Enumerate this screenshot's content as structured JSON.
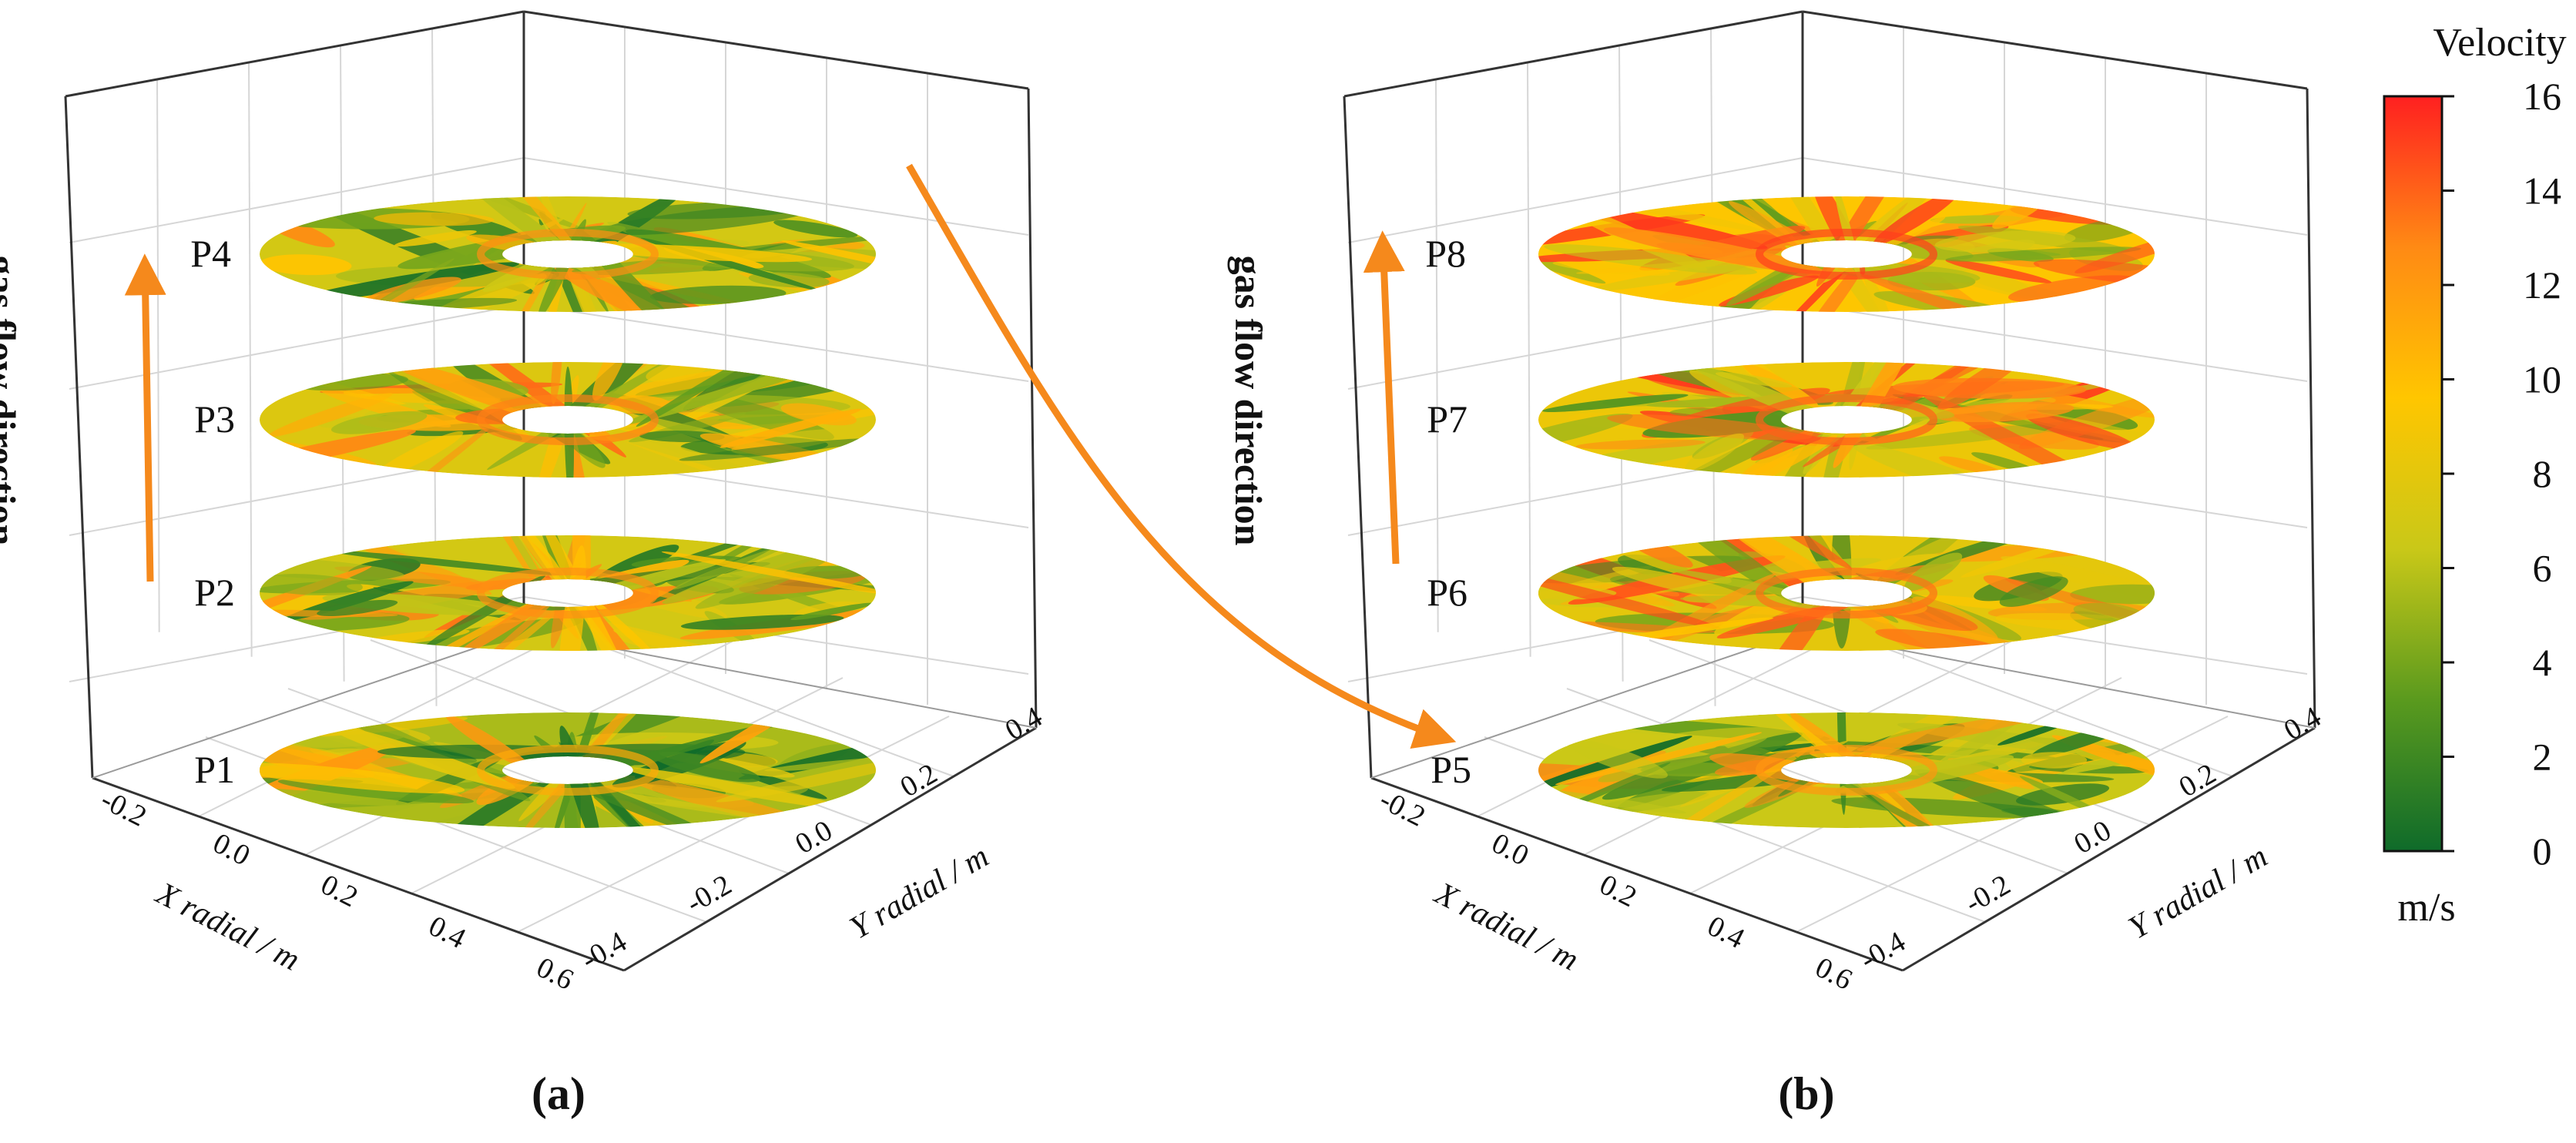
{
  "figure": {
    "panel_a_label": "(a)",
    "panel_b_label": "(b)",
    "flow_direction_label": "gas flow direction"
  },
  "colorbar": {
    "title": "Velocity",
    "unit": "m/s",
    "min": 0,
    "max": 16,
    "ticks": [
      "0",
      "2",
      "4",
      "6",
      "8",
      "10",
      "12",
      "14",
      "16"
    ],
    "stops": [
      "#0f6b2a",
      "#5a9a1e",
      "#c9c818",
      "#ffc600",
      "#ff8a14",
      "#ff2020"
    ]
  },
  "accent_color": "#f5891c",
  "chart_data": [
    {
      "type": "heatmap",
      "title": "(a)",
      "zlabel": "gas flow direction",
      "xlabel": "X radial / m",
      "ylabel": "Y radial / m",
      "xticks": [
        "-0.2",
        "0.0",
        "0.2",
        "0.4",
        "0.6"
      ],
      "yticks": [
        "-0.4",
        "-0.2",
        "0.0",
        "0.2",
        "0.4"
      ],
      "planes": [
        {
          "name": "P1",
          "mean_velocity": 5.5
        },
        {
          "name": "P2",
          "mean_velocity": 7.0
        },
        {
          "name": "P3",
          "mean_velocity": 7.5
        },
        {
          "name": "P4",
          "mean_velocity": 7.0
        }
      ]
    },
    {
      "type": "heatmap",
      "title": "(b)",
      "zlabel": "gas flow direction",
      "xlabel": "X radial / m",
      "ylabel": "Y radial / m",
      "xticks": [
        "-0.2",
        "0.0",
        "0.2",
        "0.4",
        "0.6"
      ],
      "yticks": [
        "-0.4",
        "-0.2",
        "0.0",
        "0.2",
        "0.4"
      ],
      "planes": [
        {
          "name": "P5",
          "mean_velocity": 6.5
        },
        {
          "name": "P6",
          "mean_velocity": 8.0
        },
        {
          "name": "P7",
          "mean_velocity": 8.5
        },
        {
          "name": "P8",
          "mean_velocity": 9.5
        }
      ]
    }
  ]
}
